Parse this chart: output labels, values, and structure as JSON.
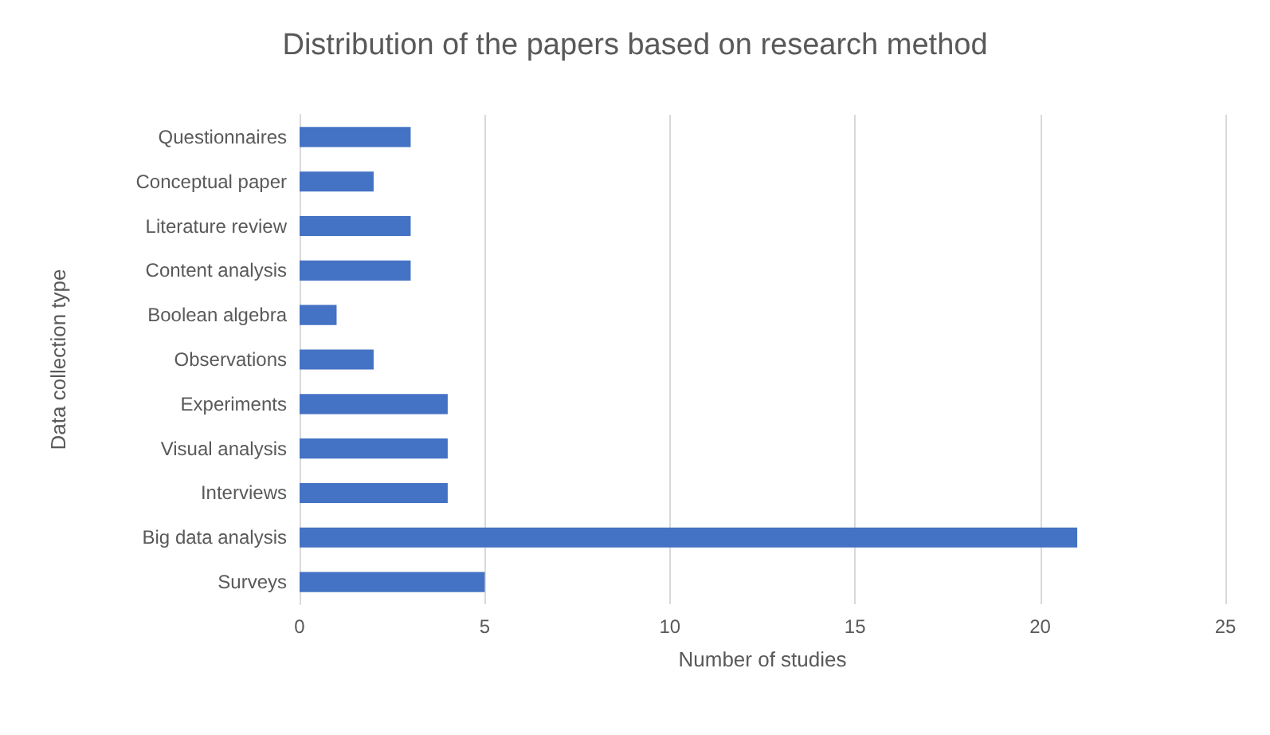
{
  "chart_data": {
    "type": "bar",
    "orientation": "horizontal",
    "title": "Distribution of the papers based on research method",
    "xlabel": "Number of studies",
    "ylabel": "Data collection type",
    "categories": [
      "Questionnaires",
      "Conceptual paper",
      "Literature review",
      "Content analysis",
      "Boolean algebra",
      "Observations",
      "Experiments",
      "Visual analysis",
      "Interviews",
      "Big data analysis",
      "Surveys"
    ],
    "values": [
      3,
      2,
      3,
      3,
      1,
      2,
      4,
      4,
      4,
      21,
      5
    ],
    "color": "#4472c4",
    "xlim": [
      0,
      25
    ],
    "xticks": [
      0,
      5,
      10,
      15,
      20,
      25
    ],
    "grid": "x"
  }
}
